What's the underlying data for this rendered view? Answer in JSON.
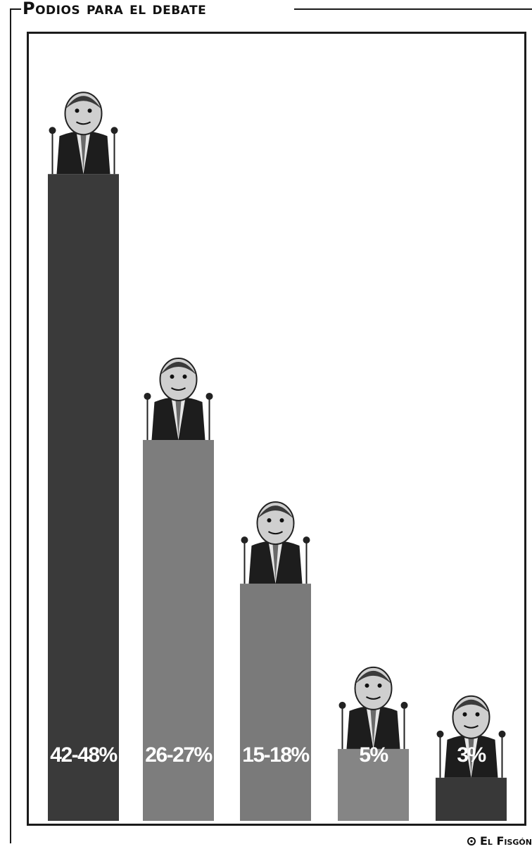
{
  "title": "Podios para el debate",
  "credit": "El Fisgón",
  "chart_data": {
    "type": "bar",
    "title": "Podios para el debate",
    "categories": [
      "",
      "",
      "",
      "",
      ""
    ],
    "values": [
      45,
      26.5,
      16.5,
      5,
      3
    ],
    "ranges": [
      [
        42,
        48
      ],
      [
        26,
        27
      ],
      [
        15,
        18
      ],
      [
        5,
        5
      ],
      [
        3,
        3
      ]
    ],
    "data_labels": [
      "42-48%",
      "26-27%",
      "15-18%",
      "5%",
      "3%"
    ],
    "colors": [
      "#3a3a3a",
      "#7d7d7d",
      "#7a7a7a",
      "#858585",
      "#383838"
    ],
    "figures": [
      "caricature-podium-1",
      "caricature-podium-2",
      "caricature-podium-3",
      "caricature-podium-4",
      "caricature-podium-5"
    ],
    "xlabel": "",
    "ylabel": "",
    "ylim": [
      0,
      48
    ],
    "grid": false,
    "legend": "none"
  }
}
